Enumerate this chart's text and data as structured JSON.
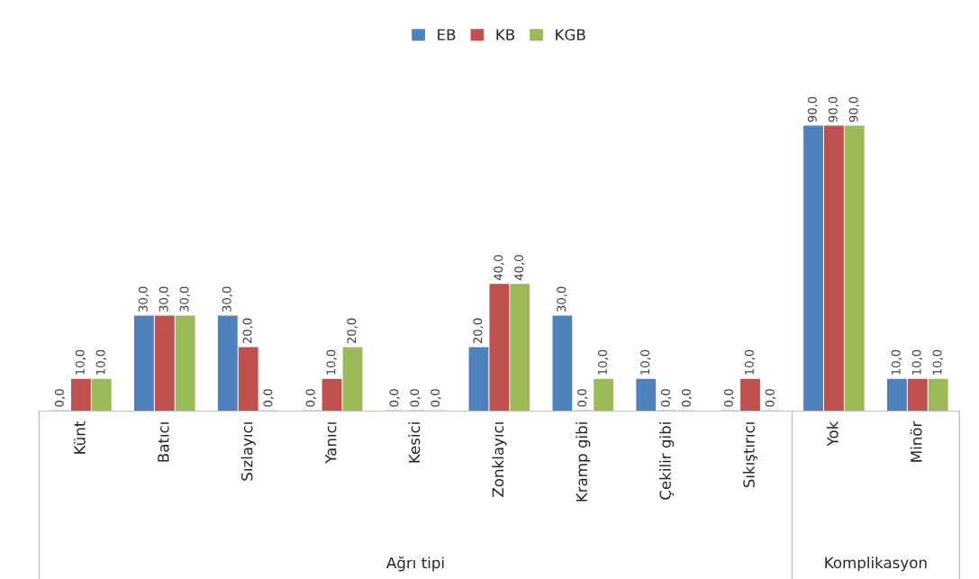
{
  "chart_data": {
    "type": "bar",
    "categories": [
      "Künt",
      "Batıcı",
      "Sızlayıcı",
      "Yanıcı",
      "Kesici",
      "Zonklayıcı",
      "Kramp gibi",
      "Çekilir gibi",
      "Sıkıştırıcı",
      "Yok",
      "Minör"
    ],
    "series": [
      {
        "name": "EB",
        "color": "#4f81bd",
        "values": [
          0,
          30,
          30,
          0,
          0,
          20,
          30,
          10,
          0,
          90,
          10
        ],
        "value_labels": [
          "0,0",
          "30,0",
          "30,0",
          "0,0",
          "0,0",
          "20,0",
          "30,0",
          "10,0",
          "0,0",
          "90,0",
          "10,0"
        ]
      },
      {
        "name": "KB",
        "color": "#c0504d",
        "values": [
          10,
          30,
          20,
          10,
          0,
          40,
          0,
          0,
          10,
          90,
          10
        ],
        "value_labels": [
          "10,0",
          "30,0",
          "20,0",
          "10,0",
          "0,0",
          "40,0",
          "0,0",
          "0,0",
          "10,0",
          "90,0",
          "10,0"
        ]
      },
      {
        "name": "KGB",
        "color": "#9bbb59",
        "values": [
          10,
          30,
          0,
          20,
          0,
          40,
          10,
          0,
          0,
          90,
          10
        ],
        "value_labels": [
          "10,0",
          "30,0",
          "0,0",
          "20,0",
          "0,0",
          "40,0",
          "10,0",
          "0,0",
          "0,0",
          "90,0",
          "10,0"
        ]
      }
    ],
    "annotations": [
      "Ağrı tipi",
      "Komplikasyon"
    ],
    "legend": "top",
    "grid": false
  }
}
